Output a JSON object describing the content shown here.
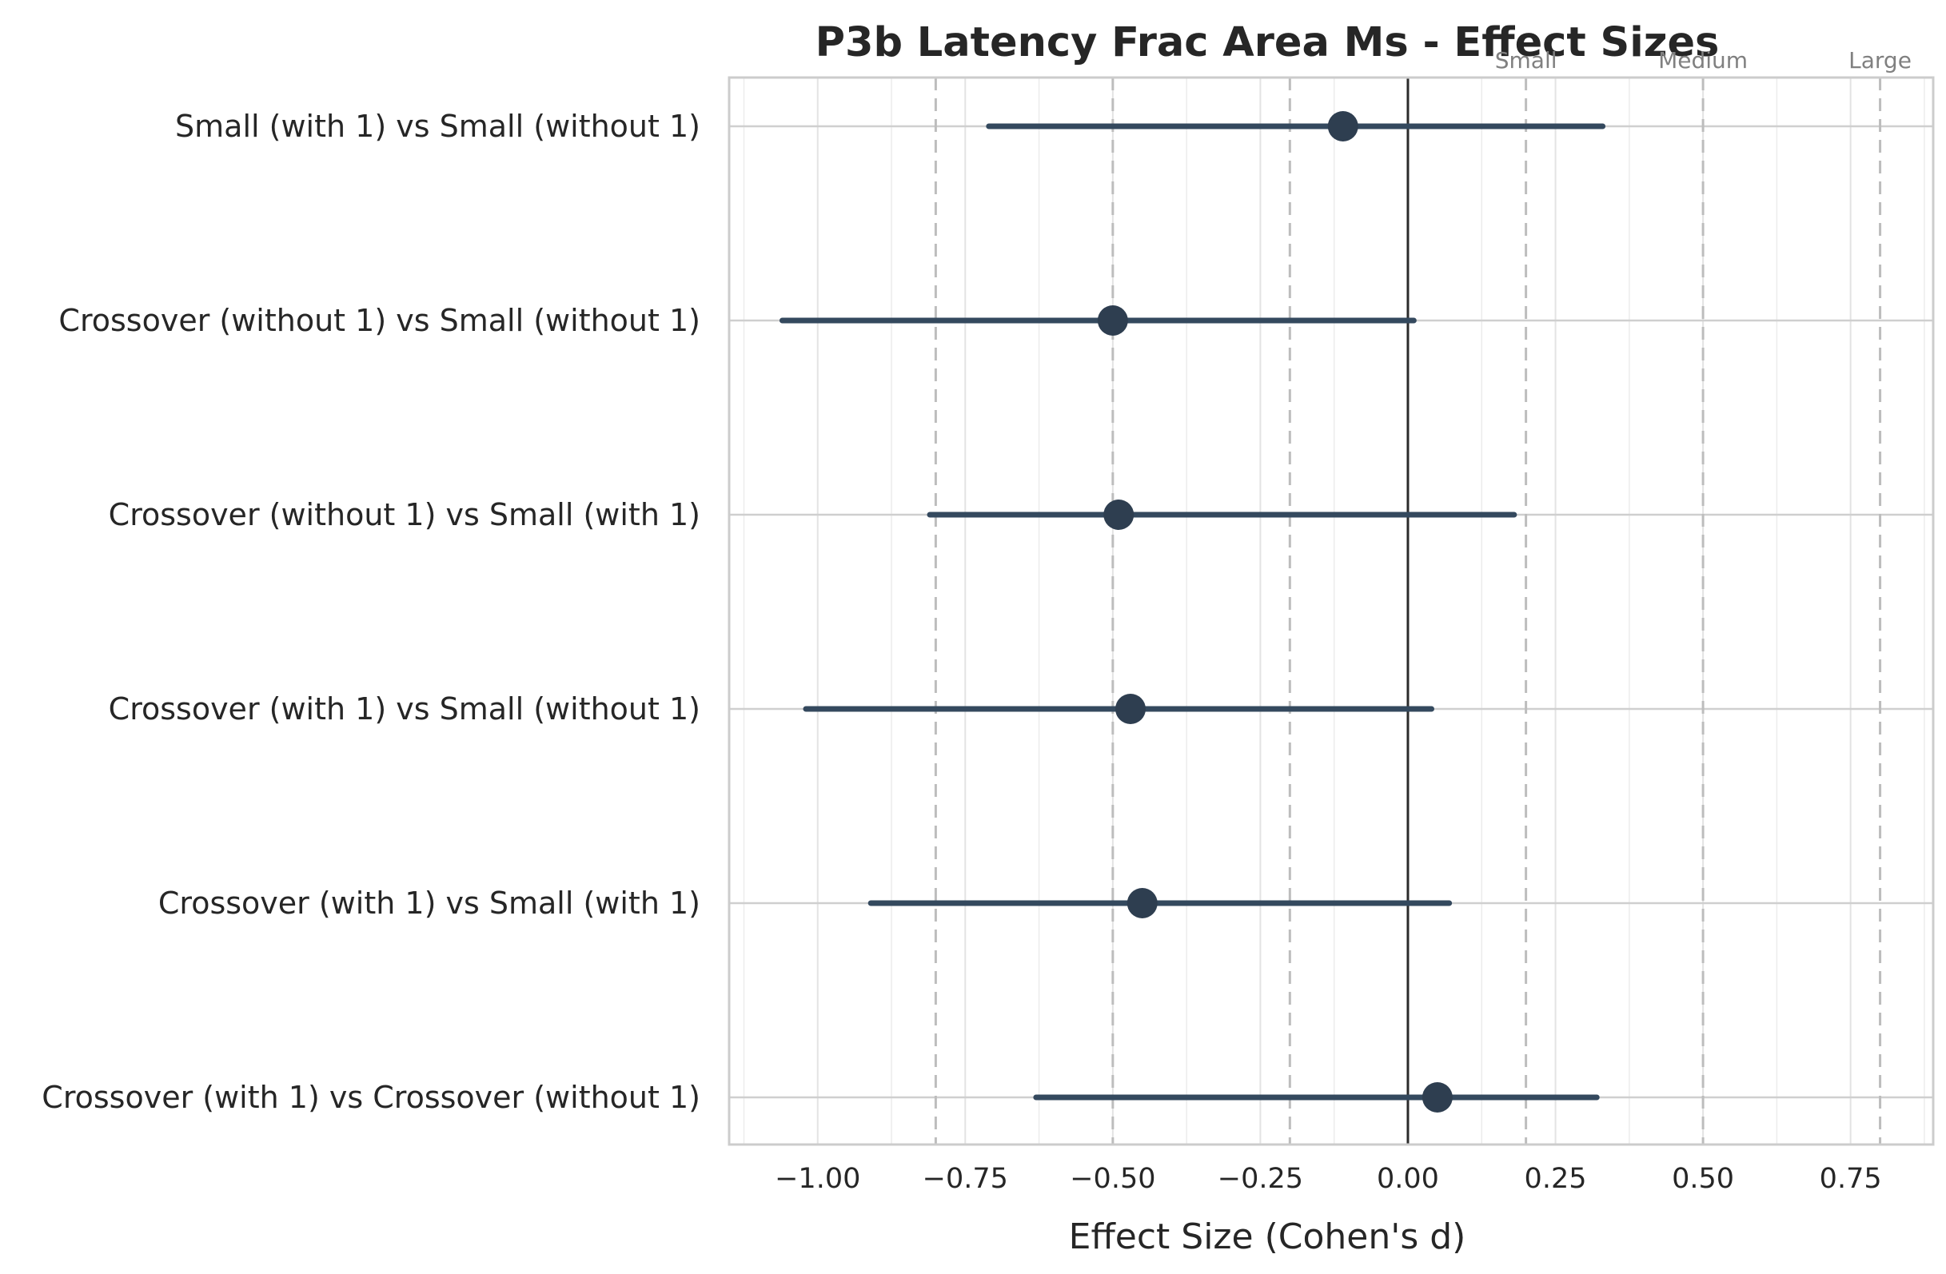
{
  "chart_data": {
    "type": "forest",
    "title": "P3b Latency Frac Area Ms - Effect Sizes",
    "xlabel": "Effect Size (Cohen's d)",
    "ylabel": "",
    "xlim": [
      -1.15,
      0.89
    ],
    "x_ticks": [
      -1.0,
      -0.75,
      -0.5,
      -0.25,
      0.0,
      0.25,
      0.5,
      0.75
    ],
    "x_tick_labels": [
      "−1.00",
      "−0.75",
      "−0.50",
      "−0.25",
      "0.00",
      "0.25",
      "0.50",
      "0.75"
    ],
    "grid": true,
    "marker_color": "#2e3e50",
    "line_color": "#34495e",
    "zero_line": 0,
    "reference_lines": [
      {
        "value": -0.8,
        "label": ""
      },
      {
        "value": -0.5,
        "label": ""
      },
      {
        "value": -0.2,
        "label": ""
      },
      {
        "value": 0.2,
        "label": "Small"
      },
      {
        "value": 0.5,
        "label": "Medium"
      },
      {
        "value": 0.8,
        "label": "Large"
      }
    ],
    "comparisons": [
      {
        "label": "Small (with 1) vs Small (without 1)",
        "d": -0.11,
        "ci_low": -0.71,
        "ci_high": 0.33
      },
      {
        "label": "Crossover (without 1) vs Small (without 1)",
        "d": -0.5,
        "ci_low": -1.06,
        "ci_high": 0.01
      },
      {
        "label": "Crossover (without 1) vs Small (with 1)",
        "d": -0.49,
        "ci_low": -0.81,
        "ci_high": 0.18
      },
      {
        "label": "Crossover (with 1) vs Small (without 1)",
        "d": -0.47,
        "ci_low": -1.02,
        "ci_high": 0.04
      },
      {
        "label": "Crossover (with 1) vs Small (with 1)",
        "d": -0.45,
        "ci_low": -0.91,
        "ci_high": 0.07
      },
      {
        "label": "Crossover (with 1) vs Crossover (without 1)",
        "d": 0.05,
        "ci_low": -0.63,
        "ci_high": 0.32
      }
    ]
  }
}
